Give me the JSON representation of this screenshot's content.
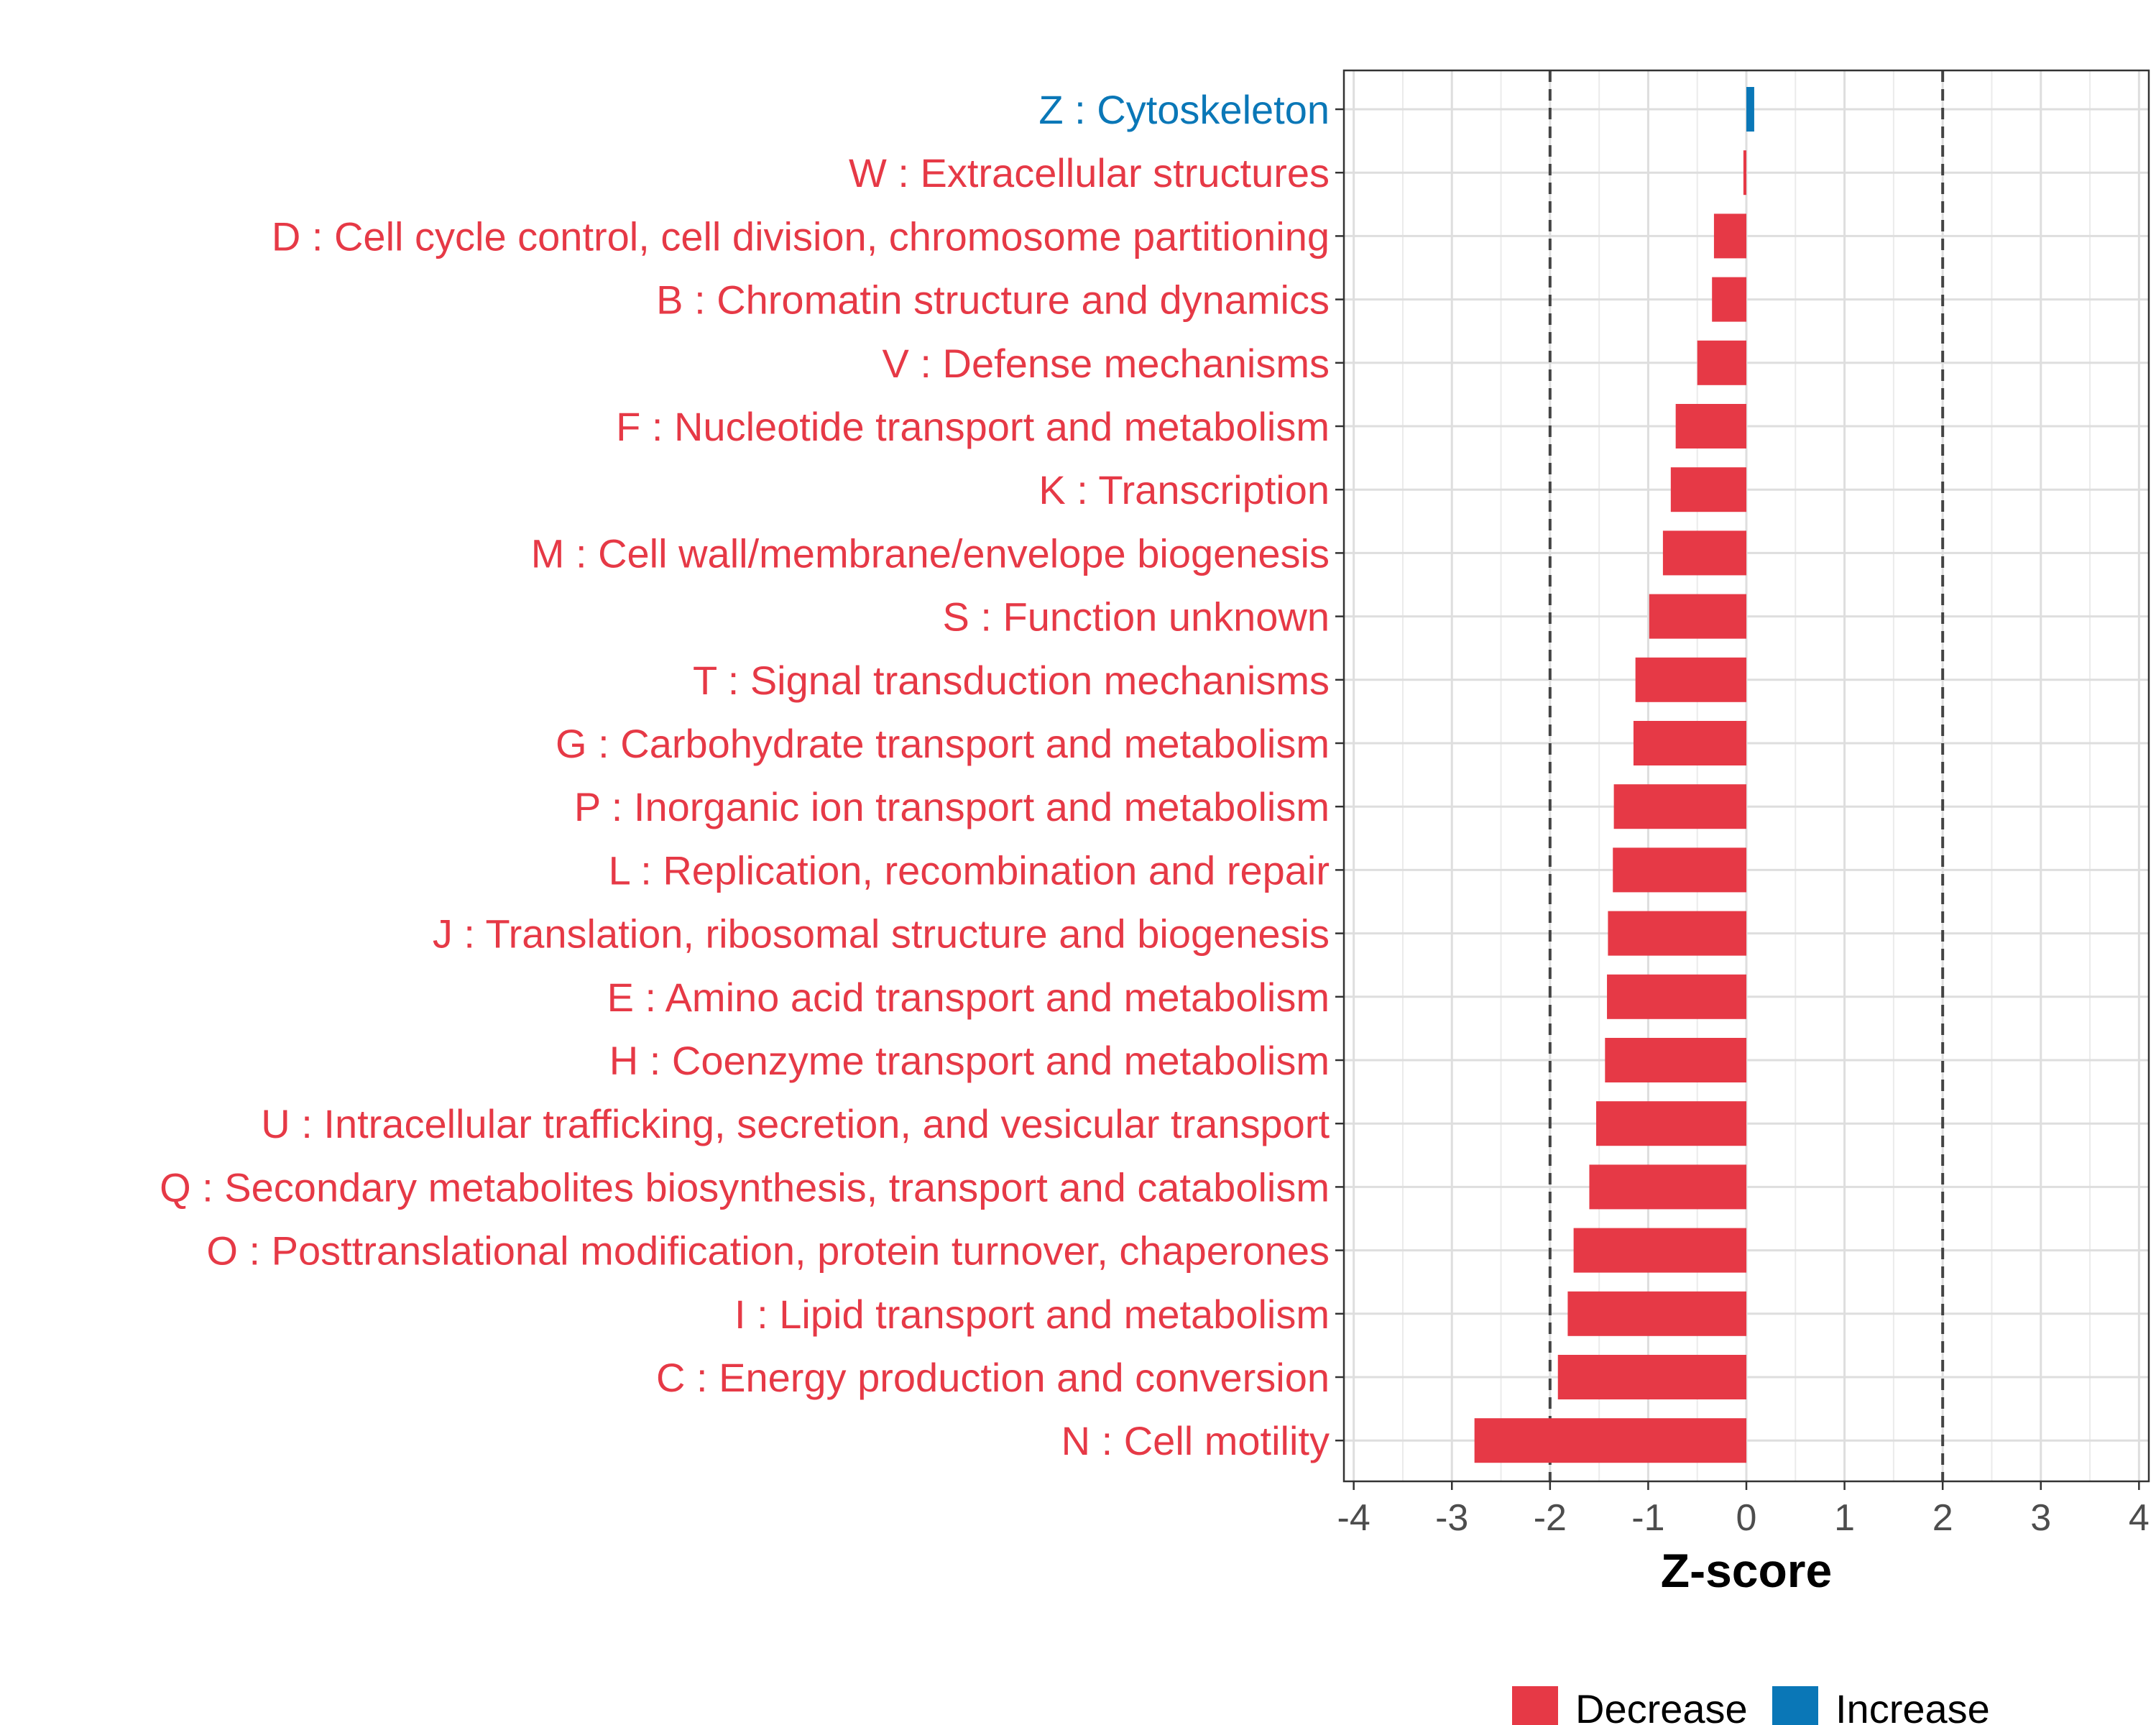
{
  "chart_data": {
    "type": "bar",
    "orientation": "horizontal",
    "title": "",
    "xlabel": "Z-score",
    "ylabel": "",
    "xlim": [
      -4.1,
      4.1
    ],
    "x_ticks": [
      -4,
      -3,
      -2,
      -1,
      0,
      1,
      2,
      3,
      4
    ],
    "x_tick_labels": [
      "-4",
      "-3",
      "-2",
      "-1",
      "0",
      "1",
      "2",
      "3",
      "4"
    ],
    "reference_lines": [
      -2,
      2
    ],
    "grid": true,
    "colors": {
      "Decrease": "#E63946",
      "Increase": "#0A77B7"
    },
    "categories": [
      "Z : Cytoskeleton",
      "W : Extracellular structures",
      "D : Cell cycle control, cell division, chromosome partitioning",
      "B : Chromatin structure and dynamics",
      "V : Defense mechanisms",
      "F : Nucleotide transport and metabolism",
      "K : Transcription",
      "M : Cell wall/membrane/envelope biogenesis",
      "S : Function unknown",
      "T : Signal transduction mechanisms",
      "G : Carbohydrate transport and metabolism",
      "P : Inorganic ion transport and metabolism",
      "L : Replication, recombination and repair",
      "J : Translation, ribosomal structure and biogenesis",
      "E : Amino acid transport and metabolism",
      "H : Coenzyme transport and metabolism",
      "U : Intracellular trafficking, secretion, and vesicular transport",
      "Q : Secondary metabolites biosynthesis, transport and catabolism",
      "O : Posttranslational modification, protein turnover, chaperones",
      "I : Lipid transport and metabolism",
      "C : Energy production and conversion",
      "N : Cell motility"
    ],
    "values": [
      0.08,
      -0.03,
      -0.33,
      -0.35,
      -0.5,
      -0.72,
      -0.77,
      -0.85,
      -0.99,
      -1.13,
      -1.15,
      -1.35,
      -1.36,
      -1.41,
      -1.42,
      -1.44,
      -1.53,
      -1.6,
      -1.76,
      -1.82,
      -1.92,
      -2.77
    ],
    "groups": [
      "Increase",
      "Decrease",
      "Decrease",
      "Decrease",
      "Decrease",
      "Decrease",
      "Decrease",
      "Decrease",
      "Decrease",
      "Decrease",
      "Decrease",
      "Decrease",
      "Decrease",
      "Decrease",
      "Decrease",
      "Decrease",
      "Decrease",
      "Decrease",
      "Decrease",
      "Decrease",
      "Decrease",
      "Decrease"
    ],
    "legend": {
      "position": "bottom",
      "entries": [
        {
          "label": "Decrease",
          "color": "#E63946"
        },
        {
          "label": "Increase",
          "color": "#0A77B7"
        }
      ]
    }
  }
}
